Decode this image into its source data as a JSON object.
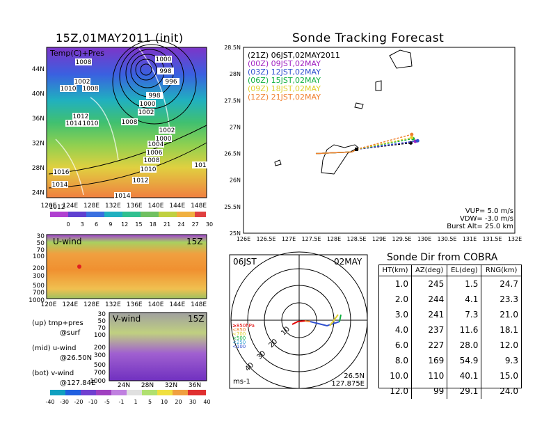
{
  "map_title": "15Z,01MAY2011 (init)",
  "map_layer_label": "Temp(C)+Pres",
  "map_lat_ticks": [
    "44N",
    "40N",
    "36N",
    "32N",
    "28N",
    "24N"
  ],
  "map_lon_ticks": [
    "120E",
    "124E",
    "128E",
    "132E",
    "136E",
    "140E",
    "144E",
    "148E"
  ],
  "pressure_labels": [
    "1008",
    "1002",
    "1000",
    "1008",
    "998",
    "996",
    "1010",
    "998",
    "1000",
    "1002",
    "1012",
    "1014",
    "1010",
    "1008",
    "1002",
    "1000",
    "1004",
    "1006",
    "1008",
    "1010",
    "1016",
    "1012",
    "1014",
    "1014",
    "1012",
    "101"
  ],
  "temp_colorbar": [
    "0",
    "3",
    "6",
    "9",
    "12",
    "15",
    "18",
    "21",
    "24",
    "27",
    "30"
  ],
  "uwind_title": "U-wind",
  "uwind_time": "15Z",
  "uwind_levels": [
    "30",
    "50",
    "70",
    "100",
    "200",
    "300",
    "500",
    "700",
    "1000"
  ],
  "uwind_lon_ticks": [
    "120E",
    "124E",
    "128E",
    "132E",
    "136E",
    "140E",
    "144E",
    "148E"
  ],
  "vwind_title": "V-wind",
  "vwind_time": "15Z",
  "vwind_levels": [
    "30",
    "50",
    "70",
    "100",
    "200",
    "300",
    "500",
    "700",
    "1000"
  ],
  "vwind_lat_ticks": [
    "24N",
    "28N",
    "32N",
    "36N"
  ],
  "wind_colorbar": [
    "-40",
    "-30",
    "-20",
    "-10",
    "-5",
    "-1",
    "1",
    "5",
    "10",
    "20",
    "30",
    "40"
  ],
  "legend_lines": [
    "(up) tmp+pres",
    "@surf",
    "(mid) u-wind",
    "@26.50N",
    "(bot) v-wind",
    "@127.84E"
  ],
  "chart_data": {
    "type": "line",
    "title": "Sonde Tracking Forecast",
    "xlim": [
      126,
      132
    ],
    "ylim": [
      25,
      28.5
    ],
    "x_ticks": [
      "126E",
      "126.5E",
      "127E",
      "127.5E",
      "128E",
      "128.5E",
      "129E",
      "129.5E",
      "130E",
      "130.5E",
      "131E",
      "131.5E",
      "132E"
    ],
    "y_ticks": [
      "28.5N",
      "28N",
      "27.5N",
      "27N",
      "26.5N",
      "26N",
      "25.5N",
      "25N"
    ],
    "launch_point": {
      "lon": 128.5,
      "lat": 26.58
    },
    "series": [
      {
        "name": "(21Z)  06JST,02MAY2011",
        "color": "#000000",
        "end": {
          "lon": 129.7,
          "lat": 26.7
        }
      },
      {
        "name": "(00Z)  09JST,02MAY",
        "color": "#a020c0",
        "end": {
          "lon": 129.8,
          "lat": 26.73
        }
      },
      {
        "name": "(03Z)  12JST,02MAY",
        "color": "#3050d0",
        "end": {
          "lon": 129.85,
          "lat": 26.74
        }
      },
      {
        "name": "(06Z)  15JST,02MAY",
        "color": "#10b040",
        "end": {
          "lon": 129.75,
          "lat": 26.78
        }
      },
      {
        "name": "(09Z)  18JST,02MAY",
        "color": "#e0d030",
        "end": {
          "lon": 129.72,
          "lat": 26.8
        }
      },
      {
        "name": "(12Z)  21JST,02MAY",
        "color": "#f08030",
        "end": {
          "lon": 129.72,
          "lat": 26.86
        }
      }
    ],
    "params": {
      "VUP": "VUP=  5.0  m/s",
      "VDW": "VDW= -3.0  m/s",
      "Burst": "Burst Alt=  25.0  km"
    }
  },
  "polar": {
    "time_label": "06JST",
    "date_label": "02MAY",
    "ring_labels": [
      "10",
      "20",
      "30",
      "40"
    ],
    "levels": [
      "≥850hPa",
      "<850",
      "<700",
      "<500",
      "<250",
      "<100"
    ],
    "level_colors": [
      "#e00000",
      "#f08030",
      "#e0d030",
      "#10b040",
      "#30a0d0",
      "#3050d0"
    ],
    "coord_lat": "26.5N",
    "coord_lon": "127.875E",
    "unit": "ms-1"
  },
  "sonde_table": {
    "title": "Sonde Dir from COBRA",
    "headers": [
      "HT(km)",
      "AZ(deg)",
      "EL(deg)",
      "RNG(km)"
    ],
    "rows": [
      [
        "1.0",
        "245",
        "1.5",
        "24.7"
      ],
      [
        "2.0",
        "244",
        "4.1",
        "23.3"
      ],
      [
        "3.0",
        "241",
        "7.3",
        "21.0"
      ],
      [
        "4.0",
        "237",
        "11.6",
        "18.1"
      ],
      [
        "6.0",
        "227",
        "28.0",
        "12.0"
      ],
      [
        "8.0",
        "169",
        "54.9",
        "9.3"
      ],
      [
        "10.0",
        "110",
        "40.1",
        "15.0"
      ],
      [
        "12.0",
        "99",
        "29.1",
        "24.0"
      ]
    ]
  }
}
